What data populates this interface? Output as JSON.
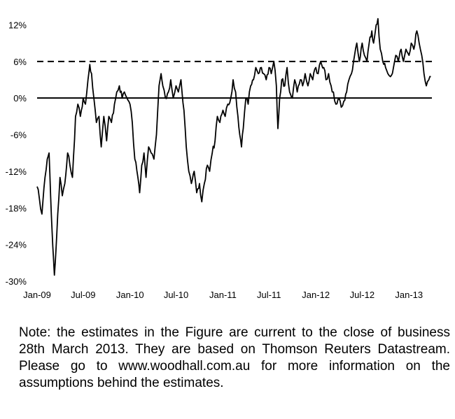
{
  "chart_data": {
    "type": "line",
    "title": "",
    "xlabel": "",
    "ylabel": "",
    "x_range": [
      "2009-01-01",
      "2013-04-01"
    ],
    "ylim": [
      -30,
      14
    ],
    "y_ticks": [
      12,
      6,
      0,
      -6,
      -12,
      -18,
      -24,
      -30
    ],
    "y_tick_labels": [
      "12%",
      "6%",
      "0%",
      "-6%",
      "-12%",
      "-18%",
      "-24%",
      "-30%"
    ],
    "x_ticks": [
      "2009-01-01",
      "2009-07-01",
      "2010-01-01",
      "2010-07-01",
      "2011-01-01",
      "2011-07-01",
      "2012-01-01",
      "2012-07-01",
      "2013-01-01"
    ],
    "x_tick_labels": [
      "Jan-09",
      "Jul-09",
      "Jan-10",
      "Jul-10",
      "Jan-11",
      "Jul-11",
      "Jan-12",
      "Jul-12",
      "Jan-13"
    ],
    "grid": false,
    "legend": "none",
    "reference_lines": [
      {
        "y": 0,
        "style": "solid"
      },
      {
        "y": 6,
        "style": "dashed"
      }
    ],
    "series": [
      {
        "color": "#000000",
        "points": [
          [
            "2009-01-01",
            -14.5
          ],
          [
            "2009-01-10",
            -16.5
          ],
          [
            "2009-01-20",
            -19
          ],
          [
            "2009-02-01",
            -13
          ],
          [
            "2009-02-10",
            -10
          ],
          [
            "2009-02-17",
            -9
          ],
          [
            "2009-02-23",
            -16
          ],
          [
            "2009-03-01",
            -22
          ],
          [
            "2009-03-06",
            -26
          ],
          [
            "2009-03-10",
            -29
          ],
          [
            "2009-03-16",
            -25
          ],
          [
            "2009-03-23",
            -19
          ],
          [
            "2009-04-01",
            -13
          ],
          [
            "2009-04-10",
            -16
          ],
          [
            "2009-04-20",
            -14
          ],
          [
            "2009-05-01",
            -9
          ],
          [
            "2009-05-10",
            -11
          ],
          [
            "2009-05-20",
            -13
          ],
          [
            "2009-06-01",
            -3
          ],
          [
            "2009-06-10",
            -1
          ],
          [
            "2009-06-20",
            -3
          ],
          [
            "2009-07-01",
            0
          ],
          [
            "2009-07-10",
            -1
          ],
          [
            "2009-07-20",
            3
          ],
          [
            "2009-07-27",
            5.5
          ],
          [
            "2009-08-03",
            4
          ],
          [
            "2009-08-12",
            0
          ],
          [
            "2009-08-22",
            -4
          ],
          [
            "2009-09-01",
            -3
          ],
          [
            "2009-09-10",
            -8
          ],
          [
            "2009-09-20",
            -3
          ],
          [
            "2009-10-01",
            -7
          ],
          [
            "2009-10-10",
            -3
          ],
          [
            "2009-10-20",
            -4
          ],
          [
            "2009-11-01",
            -1
          ],
          [
            "2009-11-10",
            1
          ],
          [
            "2009-11-20",
            2
          ],
          [
            "2009-12-01",
            0
          ],
          [
            "2009-12-10",
            1
          ],
          [
            "2009-12-20",
            0
          ],
          [
            "2010-01-01",
            -1
          ],
          [
            "2010-01-10",
            -4
          ],
          [
            "2010-01-20",
            -10
          ],
          [
            "2010-02-01",
            -13
          ],
          [
            "2010-02-08",
            -15.5
          ],
          [
            "2010-02-16",
            -11
          ],
          [
            "2010-02-25",
            -9
          ],
          [
            "2010-03-05",
            -13
          ],
          [
            "2010-03-15",
            -8
          ],
          [
            "2010-03-25",
            -9
          ],
          [
            "2010-04-05",
            -10
          ],
          [
            "2010-04-15",
            -6
          ],
          [
            "2010-04-25",
            2
          ],
          [
            "2010-05-03",
            4
          ],
          [
            "2010-05-10",
            2
          ],
          [
            "2010-05-20",
            0
          ],
          [
            "2010-06-01",
            1
          ],
          [
            "2010-06-10",
            3
          ],
          [
            "2010-06-20",
            0
          ],
          [
            "2010-07-01",
            2
          ],
          [
            "2010-07-10",
            1
          ],
          [
            "2010-07-20",
            3
          ],
          [
            "2010-08-01",
            -2
          ],
          [
            "2010-08-10",
            -8
          ],
          [
            "2010-08-20",
            -12
          ],
          [
            "2010-08-30",
            -14
          ],
          [
            "2010-09-10",
            -12
          ],
          [
            "2010-09-20",
            -15.5
          ],
          [
            "2010-10-01",
            -14
          ],
          [
            "2010-10-10",
            -17
          ],
          [
            "2010-10-20",
            -14
          ],
          [
            "2010-11-01",
            -11
          ],
          [
            "2010-11-10",
            -12
          ],
          [
            "2010-11-20",
            -9
          ],
          [
            "2010-12-01",
            -7
          ],
          [
            "2010-12-10",
            -3
          ],
          [
            "2010-12-20",
            -4
          ],
          [
            "2011-01-01",
            -2
          ],
          [
            "2011-01-10",
            -3
          ],
          [
            "2011-01-20",
            -1
          ],
          [
            "2011-02-01",
            0
          ],
          [
            "2011-02-10",
            3
          ],
          [
            "2011-02-20",
            1
          ],
          [
            "2011-03-01",
            -3
          ],
          [
            "2011-03-08",
            -6
          ],
          [
            "2011-03-15",
            -8
          ],
          [
            "2011-03-22",
            -5
          ],
          [
            "2011-04-01",
            0
          ],
          [
            "2011-04-10",
            -1
          ],
          [
            "2011-04-20",
            2
          ],
          [
            "2011-05-01",
            3
          ],
          [
            "2011-05-10",
            5
          ],
          [
            "2011-05-20",
            4
          ],
          [
            "2011-06-01",
            5
          ],
          [
            "2011-06-10",
            4
          ],
          [
            "2011-06-20",
            3
          ],
          [
            "2011-07-01",
            5
          ],
          [
            "2011-07-10",
            4
          ],
          [
            "2011-07-20",
            6
          ],
          [
            "2011-07-30",
            2
          ],
          [
            "2011-08-05",
            -5
          ],
          [
            "2011-08-12",
            0
          ],
          [
            "2011-08-20",
            3
          ],
          [
            "2011-09-01",
            2
          ],
          [
            "2011-09-10",
            5
          ],
          [
            "2011-09-20",
            1
          ],
          [
            "2011-10-01",
            0
          ],
          [
            "2011-10-10",
            3
          ],
          [
            "2011-10-20",
            1
          ],
          [
            "2011-11-01",
            3
          ],
          [
            "2011-11-10",
            2
          ],
          [
            "2011-11-20",
            4
          ],
          [
            "2011-12-01",
            2
          ],
          [
            "2011-12-10",
            4
          ],
          [
            "2011-12-20",
            3
          ],
          [
            "2012-01-01",
            5
          ],
          [
            "2012-01-10",
            4
          ],
          [
            "2012-01-20",
            6
          ],
          [
            "2012-02-01",
            5
          ],
          [
            "2012-02-10",
            3
          ],
          [
            "2012-02-20",
            4
          ],
          [
            "2012-03-01",
            2
          ],
          [
            "2012-03-10",
            1
          ],
          [
            "2012-03-20",
            -1
          ],
          [
            "2012-04-01",
            0
          ],
          [
            "2012-04-10",
            -1.5
          ],
          [
            "2012-04-20",
            -0.5
          ],
          [
            "2012-05-01",
            1
          ],
          [
            "2012-05-10",
            3
          ],
          [
            "2012-05-20",
            4
          ],
          [
            "2012-06-01",
            7
          ],
          [
            "2012-06-10",
            9
          ],
          [
            "2012-06-20",
            6
          ],
          [
            "2012-07-01",
            9
          ],
          [
            "2012-07-10",
            7
          ],
          [
            "2012-07-20",
            6
          ],
          [
            "2012-08-01",
            10
          ],
          [
            "2012-08-08",
            11
          ],
          [
            "2012-08-15",
            9
          ],
          [
            "2012-08-25",
            12
          ],
          [
            "2012-09-01",
            13
          ],
          [
            "2012-09-10",
            8
          ],
          [
            "2012-09-20",
            6
          ],
          [
            "2012-10-01",
            5
          ],
          [
            "2012-10-10",
            4
          ],
          [
            "2012-10-20",
            3.5
          ],
          [
            "2012-11-01",
            5
          ],
          [
            "2012-11-10",
            7
          ],
          [
            "2012-11-20",
            6
          ],
          [
            "2012-12-01",
            8
          ],
          [
            "2012-12-10",
            6
          ],
          [
            "2012-12-20",
            8
          ],
          [
            "2013-01-01",
            7
          ],
          [
            "2013-01-10",
            9
          ],
          [
            "2013-01-20",
            8
          ],
          [
            "2013-02-01",
            11
          ],
          [
            "2013-02-10",
            9
          ],
          [
            "2013-02-20",
            7
          ],
          [
            "2013-03-01",
            4
          ],
          [
            "2013-03-10",
            2
          ],
          [
            "2013-03-20",
            3
          ],
          [
            "2013-03-28",
            3.5
          ]
        ]
      }
    ]
  },
  "note": {
    "text": "Note: the estimates in the Figure are current to the close of business 28th March 2013. They are based on Thomson Reuters Datastream. Please go to www.woodhall.com.au for more information on the assumptions behind the estimates."
  }
}
